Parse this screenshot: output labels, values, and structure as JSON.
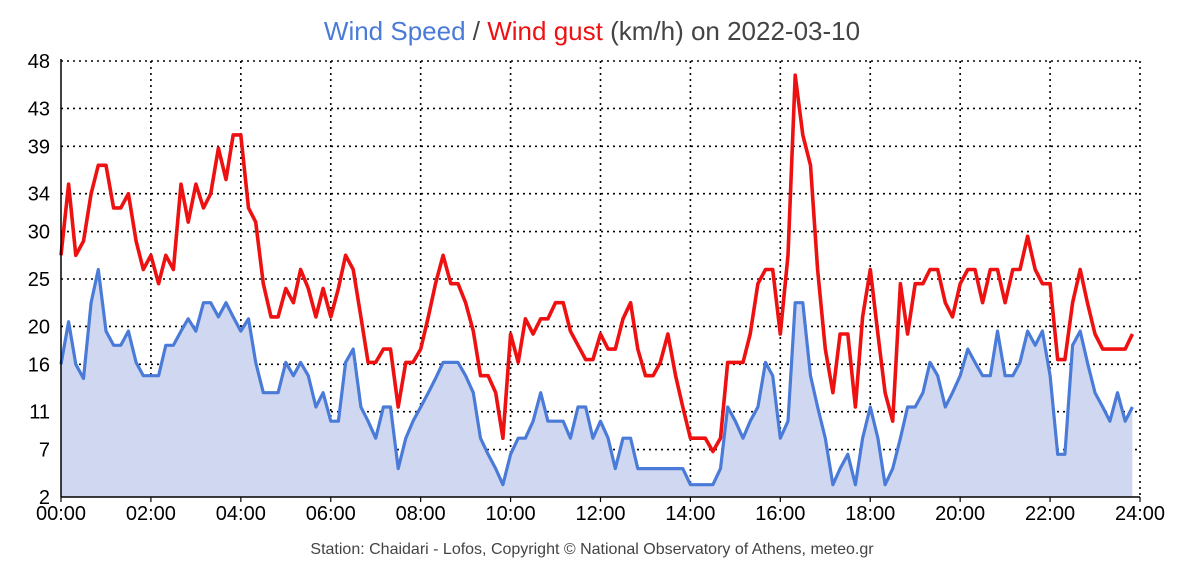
{
  "title": {
    "series1": "Wind Speed",
    "sep": " / ",
    "series2": "Wind gust",
    "rest": " (km/h) on 2022-03-10"
  },
  "footer": "Station: Chaidari - Lofos, Copyright © National Observatory of Athens, meteo.gr",
  "colors": {
    "speed_line": "#4a7bd8",
    "speed_fill": "#cfd8f0",
    "gust_line": "#ee1111",
    "title_other": "#444444"
  },
  "chart_data": {
    "type": "area",
    "x_unit": "hour of day",
    "xlim": [
      0,
      24
    ],
    "ylim": [
      2,
      48
    ],
    "x_ticks": [
      0,
      2,
      4,
      6,
      8,
      10,
      12,
      14,
      16,
      18,
      20,
      22,
      24
    ],
    "x_tick_labels": [
      "00:00",
      "02:00",
      "04:00",
      "06:00",
      "08:00",
      "10:00",
      "12:00",
      "14:00",
      "16:00",
      "18:00",
      "20:00",
      "22:00",
      "24:00"
    ],
    "y_ticks": [
      2,
      7,
      11,
      16,
      20,
      25,
      30,
      34,
      39,
      43,
      48
    ],
    "grid": true,
    "series": [
      {
        "name": "Wind Speed",
        "style": "area",
        "points": [
          [
            0,
            16
          ],
          [
            0.17,
            20.5
          ],
          [
            0.33,
            16
          ],
          [
            0.5,
            14.5
          ],
          [
            0.67,
            22.5
          ],
          [
            0.83,
            26
          ],
          [
            1.0,
            19.5
          ],
          [
            1.17,
            18
          ],
          [
            1.33,
            18
          ],
          [
            1.5,
            19.5
          ],
          [
            1.67,
            16.2
          ],
          [
            1.83,
            14.8
          ],
          [
            2.0,
            14.8
          ],
          [
            2.17,
            14.8
          ],
          [
            2.33,
            18
          ],
          [
            2.5,
            18
          ],
          [
            2.67,
            19.5
          ],
          [
            2.83,
            20.8
          ],
          [
            3.0,
            19.5
          ],
          [
            3.17,
            22.5
          ],
          [
            3.33,
            22.5
          ],
          [
            3.5,
            21
          ],
          [
            3.67,
            22.5
          ],
          [
            3.83,
            21
          ],
          [
            4.0,
            19.5
          ],
          [
            4.17,
            20.8
          ],
          [
            4.33,
            16.2
          ],
          [
            4.5,
            13
          ],
          [
            4.67,
            13
          ],
          [
            4.83,
            13
          ],
          [
            5.0,
            16.2
          ],
          [
            5.17,
            14.8
          ],
          [
            5.33,
            16.2
          ],
          [
            5.5,
            14.8
          ],
          [
            5.67,
            11.5
          ],
          [
            5.83,
            13
          ],
          [
            6.0,
            10
          ],
          [
            6.17,
            10
          ],
          [
            6.33,
            16.2
          ],
          [
            6.5,
            17.6
          ],
          [
            6.67,
            11.5
          ],
          [
            6.83,
            10
          ],
          [
            7.0,
            8.2
          ],
          [
            7.17,
            11.5
          ],
          [
            7.33,
            11.5
          ],
          [
            7.5,
            5
          ],
          [
            7.67,
            8.2
          ],
          [
            7.83,
            10
          ],
          [
            8.0,
            11.5
          ],
          [
            8.17,
            13
          ],
          [
            8.33,
            14.5
          ],
          [
            8.5,
            16.2
          ],
          [
            8.67,
            16.2
          ],
          [
            8.83,
            16.2
          ],
          [
            9.0,
            14.8
          ],
          [
            9.17,
            13
          ],
          [
            9.33,
            8.2
          ],
          [
            9.5,
            6.5
          ],
          [
            9.67,
            5
          ],
          [
            9.83,
            3.3
          ],
          [
            10.0,
            6.5
          ],
          [
            10.17,
            8.2
          ],
          [
            10.33,
            8.2
          ],
          [
            10.5,
            10
          ],
          [
            10.67,
            13
          ],
          [
            10.83,
            10
          ],
          [
            11.0,
            10
          ],
          [
            11.17,
            10
          ],
          [
            11.33,
            8.2
          ],
          [
            11.5,
            11.5
          ],
          [
            11.67,
            11.5
          ],
          [
            11.83,
            8.2
          ],
          [
            12.0,
            10
          ],
          [
            12.17,
            8.2
          ],
          [
            12.33,
            5
          ],
          [
            12.5,
            8.2
          ],
          [
            12.67,
            8.2
          ],
          [
            12.83,
            5
          ],
          [
            13.0,
            5
          ],
          [
            13.17,
            5
          ],
          [
            13.33,
            5
          ],
          [
            13.5,
            5
          ],
          [
            13.67,
            5
          ],
          [
            13.83,
            5
          ],
          [
            14.0,
            3.3
          ],
          [
            14.17,
            3.3
          ],
          [
            14.33,
            3.3
          ],
          [
            14.5,
            3.3
          ],
          [
            14.67,
            5
          ],
          [
            14.83,
            11.5
          ],
          [
            15.0,
            10
          ],
          [
            15.17,
            8.2
          ],
          [
            15.33,
            10
          ],
          [
            15.5,
            11.5
          ],
          [
            15.67,
            16.2
          ],
          [
            15.83,
            14.8
          ],
          [
            16.0,
            8.2
          ],
          [
            16.17,
            10
          ],
          [
            16.33,
            22.5
          ],
          [
            16.5,
            22.5
          ],
          [
            16.67,
            14.8
          ],
          [
            16.83,
            11.5
          ],
          [
            17.0,
            8.2
          ],
          [
            17.17,
            3.3
          ],
          [
            17.33,
            5
          ],
          [
            17.5,
            6.5
          ],
          [
            17.67,
            3.3
          ],
          [
            17.83,
            8.2
          ],
          [
            18.0,
            11.5
          ],
          [
            18.17,
            8.2
          ],
          [
            18.33,
            3.3
          ],
          [
            18.5,
            5
          ],
          [
            18.67,
            8.2
          ],
          [
            18.83,
            11.5
          ],
          [
            19.0,
            11.5
          ],
          [
            19.17,
            13
          ],
          [
            19.33,
            16.2
          ],
          [
            19.5,
            14.8
          ],
          [
            19.67,
            11.5
          ],
          [
            19.83,
            13
          ],
          [
            20.0,
            14.8
          ],
          [
            20.17,
            17.6
          ],
          [
            20.33,
            16.2
          ],
          [
            20.5,
            14.8
          ],
          [
            20.67,
            14.8
          ],
          [
            20.83,
            19.5
          ],
          [
            21.0,
            14.8
          ],
          [
            21.17,
            14.8
          ],
          [
            21.33,
            16.2
          ],
          [
            21.5,
            19.5
          ],
          [
            21.67,
            18
          ],
          [
            21.83,
            19.5
          ],
          [
            22.0,
            14.8
          ],
          [
            22.17,
            6.5
          ],
          [
            22.33,
            6.5
          ],
          [
            22.5,
            18
          ],
          [
            22.67,
            19.5
          ],
          [
            22.83,
            16.2
          ],
          [
            23.0,
            13
          ],
          [
            23.17,
            11.5
          ],
          [
            23.33,
            10
          ],
          [
            23.5,
            13
          ],
          [
            23.67,
            10
          ],
          [
            23.83,
            11.5
          ]
        ]
      },
      {
        "name": "Wind gust",
        "style": "line",
        "points": [
          [
            0,
            27.5
          ],
          [
            0.17,
            35
          ],
          [
            0.33,
            27.5
          ],
          [
            0.5,
            29
          ],
          [
            0.67,
            34
          ],
          [
            0.83,
            37
          ],
          [
            1.0,
            37
          ],
          [
            1.17,
            32.5
          ],
          [
            1.33,
            32.5
          ],
          [
            1.5,
            34
          ],
          [
            1.67,
            29
          ],
          [
            1.83,
            26
          ],
          [
            2.0,
            27.5
          ],
          [
            2.17,
            24.5
          ],
          [
            2.33,
            27.5
          ],
          [
            2.5,
            26
          ],
          [
            2.67,
            35
          ],
          [
            2.83,
            31
          ],
          [
            3.0,
            35
          ],
          [
            3.17,
            32.5
          ],
          [
            3.33,
            34
          ],
          [
            3.5,
            38.8
          ],
          [
            3.67,
            35.5
          ],
          [
            3.83,
            40.2
          ],
          [
            4.0,
            40.2
          ],
          [
            4.17,
            32.5
          ],
          [
            4.33,
            31
          ],
          [
            4.5,
            24.5
          ],
          [
            4.67,
            21
          ],
          [
            4.83,
            21
          ],
          [
            5.0,
            24
          ],
          [
            5.17,
            22.5
          ],
          [
            5.33,
            26
          ],
          [
            5.5,
            24
          ],
          [
            5.67,
            21
          ],
          [
            5.83,
            24
          ],
          [
            6.0,
            21
          ],
          [
            6.17,
            24
          ],
          [
            6.33,
            27.5
          ],
          [
            6.5,
            26
          ],
          [
            6.67,
            21
          ],
          [
            6.83,
            16.2
          ],
          [
            7.0,
            16.2
          ],
          [
            7.17,
            17.6
          ],
          [
            7.33,
            17.6
          ],
          [
            7.5,
            11.5
          ],
          [
            7.67,
            16.2
          ],
          [
            7.83,
            16.2
          ],
          [
            8.0,
            17.6
          ],
          [
            8.17,
            21
          ],
          [
            8.33,
            24.5
          ],
          [
            8.5,
            27.5
          ],
          [
            8.67,
            24.5
          ],
          [
            8.83,
            24.5
          ],
          [
            9.0,
            22.5
          ],
          [
            9.17,
            19.5
          ],
          [
            9.33,
            14.8
          ],
          [
            9.5,
            14.8
          ],
          [
            9.67,
            13
          ],
          [
            9.83,
            8.2
          ],
          [
            10.0,
            19.2
          ],
          [
            10.17,
            16.2
          ],
          [
            10.33,
            20.8
          ],
          [
            10.5,
            19.2
          ],
          [
            10.67,
            20.8
          ],
          [
            10.83,
            20.8
          ],
          [
            11.0,
            22.5
          ],
          [
            11.17,
            22.5
          ],
          [
            11.33,
            19.5
          ],
          [
            11.5,
            18
          ],
          [
            11.67,
            16.5
          ],
          [
            11.83,
            16.5
          ],
          [
            12.0,
            19.2
          ],
          [
            12.17,
            17.6
          ],
          [
            12.33,
            17.6
          ],
          [
            12.5,
            20.8
          ],
          [
            12.67,
            22.5
          ],
          [
            12.83,
            17.6
          ],
          [
            13.0,
            14.8
          ],
          [
            13.17,
            14.8
          ],
          [
            13.33,
            16.2
          ],
          [
            13.5,
            19.2
          ],
          [
            13.67,
            14.8
          ],
          [
            13.83,
            11.5
          ],
          [
            14.0,
            8.2
          ],
          [
            14.17,
            8.2
          ],
          [
            14.33,
            8.2
          ],
          [
            14.5,
            6.8
          ],
          [
            14.67,
            8.2
          ],
          [
            14.83,
            16.2
          ],
          [
            15.0,
            16.2
          ],
          [
            15.17,
            16.2
          ],
          [
            15.33,
            19.2
          ],
          [
            15.5,
            24.5
          ],
          [
            15.67,
            26
          ],
          [
            15.83,
            26
          ],
          [
            16.0,
            19.2
          ],
          [
            16.17,
            27.5
          ],
          [
            16.33,
            46.5
          ],
          [
            16.5,
            40.2
          ],
          [
            16.67,
            37
          ],
          [
            16.83,
            26
          ],
          [
            17.0,
            17.6
          ],
          [
            17.17,
            13
          ],
          [
            17.33,
            19.2
          ],
          [
            17.5,
            19.2
          ],
          [
            17.67,
            11.5
          ],
          [
            17.83,
            21
          ],
          [
            18.0,
            26
          ],
          [
            18.17,
            19.2
          ],
          [
            18.33,
            13
          ],
          [
            18.5,
            10
          ],
          [
            18.67,
            24.5
          ],
          [
            18.83,
            19.2
          ],
          [
            19.0,
            24.5
          ],
          [
            19.17,
            24.5
          ],
          [
            19.33,
            26
          ],
          [
            19.5,
            26
          ],
          [
            19.67,
            22.5
          ],
          [
            19.83,
            21
          ],
          [
            20.0,
            24.5
          ],
          [
            20.17,
            26
          ],
          [
            20.33,
            26
          ],
          [
            20.5,
            22.5
          ],
          [
            20.67,
            26
          ],
          [
            20.83,
            26
          ],
          [
            21.0,
            22.5
          ],
          [
            21.17,
            26
          ],
          [
            21.33,
            26
          ],
          [
            21.5,
            29.5
          ],
          [
            21.67,
            26
          ],
          [
            21.83,
            24.5
          ],
          [
            22.0,
            24.5
          ],
          [
            22.17,
            16.5
          ],
          [
            22.33,
            16.5
          ],
          [
            22.5,
            22.5
          ],
          [
            22.67,
            26
          ],
          [
            22.83,
            22.5
          ],
          [
            23.0,
            19.2
          ],
          [
            23.17,
            17.6
          ],
          [
            23.33,
            17.6
          ],
          [
            23.5,
            17.6
          ],
          [
            23.67,
            17.6
          ],
          [
            23.83,
            19.2
          ]
        ]
      }
    ]
  }
}
